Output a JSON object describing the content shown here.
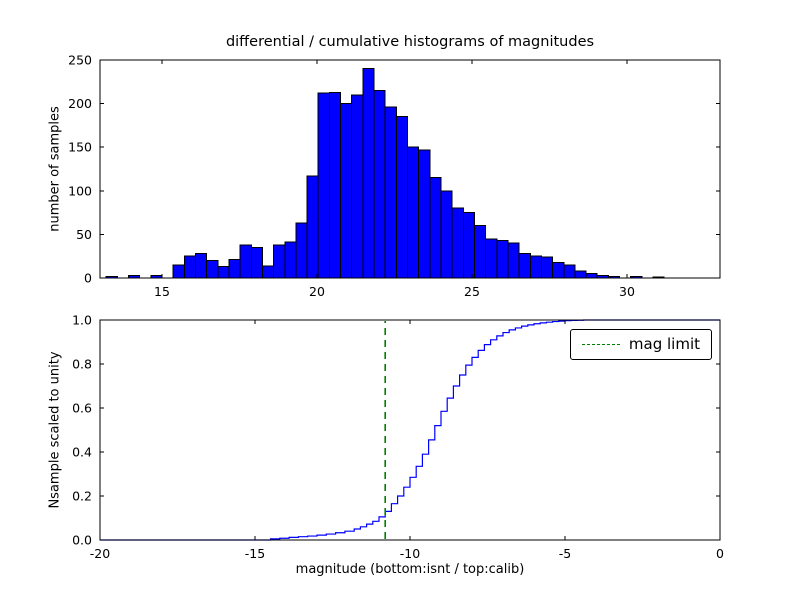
{
  "chart_data": [
    {
      "type": "bar",
      "name": "differential-histogram",
      "title": "differential / cumulative histograms of magnitudes",
      "ylabel": "number of samples",
      "bar_color": "#0000ff",
      "bar_edge_color": "#000000",
      "grid": false,
      "xlim": [
        13,
        33
      ],
      "ylim": [
        0,
        250
      ],
      "xticks": [
        15,
        20,
        25,
        30
      ],
      "xtick_labels": [
        "15",
        "20",
        "25",
        "30"
      ],
      "yticks": [
        0,
        50,
        100,
        150,
        200,
        250
      ],
      "ytick_labels": [
        "0",
        "50",
        "100",
        "150",
        "200",
        "250"
      ],
      "bin_start": 13.2,
      "bin_width": 0.36,
      "counts": [
        2,
        0,
        3,
        0,
        3,
        0,
        15,
        25,
        28,
        20,
        13,
        21,
        38,
        35,
        14,
        38,
        41,
        63,
        117,
        212,
        213,
        200,
        210,
        240,
        215,
        196,
        185,
        150,
        147,
        115,
        100,
        80,
        75,
        60,
        45,
        43,
        40,
        28,
        25,
        24,
        18,
        15,
        8,
        5,
        3,
        2,
        0,
        2,
        0,
        1
      ]
    },
    {
      "type": "line",
      "name": "cumulative-histogram",
      "xlabel": "magnitude (bottom:isnt / top:calib)",
      "ylabel": "Nsample scaled to unity",
      "line_color": "#0000ff",
      "line_style": "step",
      "grid": false,
      "legend_position": "upper right",
      "xlim": [
        -20,
        0
      ],
      "ylim": [
        0,
        1
      ],
      "xticks": [
        -20,
        -15,
        -10,
        -5,
        0
      ],
      "xtick_labels": [
        "-20",
        "-15",
        "-10",
        "-5",
        "0"
      ],
      "yticks": [
        0.0,
        0.2,
        0.4,
        0.6,
        0.8,
        1.0
      ],
      "ytick_labels": [
        "0.0",
        "0.2",
        "0.4",
        "0.6",
        "0.8",
        "1.0"
      ],
      "step_points": [
        [
          -14.5,
          0.005
        ],
        [
          -14.2,
          0.008
        ],
        [
          -13.9,
          0.012
        ],
        [
          -13.6,
          0.015
        ],
        [
          -13.3,
          0.018
        ],
        [
          -13.0,
          0.022
        ],
        [
          -12.7,
          0.027
        ],
        [
          -12.4,
          0.033
        ],
        [
          -12.1,
          0.04
        ],
        [
          -11.8,
          0.05
        ],
        [
          -11.6,
          0.06
        ],
        [
          -11.4,
          0.072
        ],
        [
          -11.2,
          0.085
        ],
        [
          -11.0,
          0.105
        ],
        [
          -10.8,
          0.13
        ],
        [
          -10.6,
          0.165
        ],
        [
          -10.4,
          0.2
        ],
        [
          -10.2,
          0.24
        ],
        [
          -10.0,
          0.285
        ],
        [
          -9.8,
          0.335
        ],
        [
          -9.6,
          0.39
        ],
        [
          -9.4,
          0.455
        ],
        [
          -9.2,
          0.52
        ],
        [
          -9.0,
          0.585
        ],
        [
          -8.8,
          0.645
        ],
        [
          -8.6,
          0.7
        ],
        [
          -8.4,
          0.75
        ],
        [
          -8.2,
          0.795
        ],
        [
          -8.0,
          0.83
        ],
        [
          -7.8,
          0.862
        ],
        [
          -7.6,
          0.888
        ],
        [
          -7.4,
          0.91
        ],
        [
          -7.2,
          0.928
        ],
        [
          -7.0,
          0.943
        ],
        [
          -6.8,
          0.955
        ],
        [
          -6.6,
          0.964
        ],
        [
          -6.4,
          0.972
        ],
        [
          -6.2,
          0.978
        ],
        [
          -6.0,
          0.983
        ],
        [
          -5.8,
          0.987
        ],
        [
          -5.6,
          0.99
        ],
        [
          -5.4,
          0.993
        ],
        [
          -5.2,
          0.995
        ],
        [
          -5.0,
          0.997
        ],
        [
          -4.8,
          0.998
        ],
        [
          -4.6,
          0.999
        ],
        [
          -4.4,
          1.0
        ]
      ],
      "mag_limit": {
        "x": -10.8,
        "color": "#008000",
        "dash": "7,5",
        "label": "mag limit"
      }
    }
  ]
}
